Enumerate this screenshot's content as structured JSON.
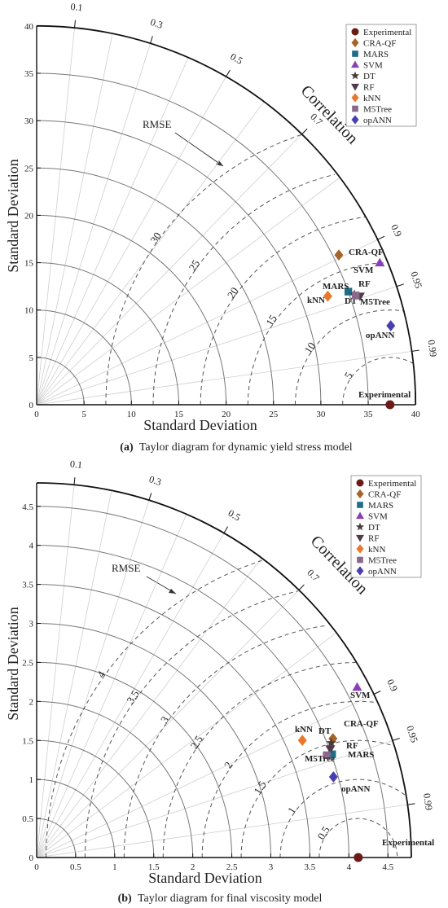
{
  "chart_data": [
    {
      "type": "taylor",
      "panel_label": "(a)",
      "caption": "Taylor diagram for dynamic yield stress model",
      "xlabel": "Standard Deviation",
      "ylabel": "Standard Deviation",
      "arc_label": "Correlation",
      "rmse_label": "RMSE",
      "sd_max": 40,
      "sd_ticks": [
        0,
        5,
        10,
        15,
        20,
        25,
        30,
        35,
        40
      ],
      "ref_arcs": [
        5,
        10,
        15,
        20,
        25,
        30,
        35
      ],
      "corr_ticks": [
        0.1,
        0.3,
        0.5,
        0.7,
        0.9,
        0.95,
        0.99
      ],
      "corr_label_list": [
        0.1,
        0.3,
        0.5,
        0.7,
        0.9,
        0.95,
        0.99
      ],
      "reference_sd": 37.3,
      "rmse_levels": [
        5,
        10,
        15,
        20,
        25,
        30
      ],
      "rmse_label_list": [
        5,
        10,
        15,
        20,
        25,
        30
      ],
      "models": [
        {
          "name": "Experimental",
          "sd": 37.3,
          "corr": 1.0,
          "label": "Experimental"
        },
        {
          "name": "CRA-QF",
          "sd": 35.6,
          "corr": 0.896,
          "label": "CRA-QF"
        },
        {
          "name": "MARS",
          "sd": 35.0,
          "corr": 0.94,
          "label": "MARS"
        },
        {
          "name": "SVM",
          "sd": 39.2,
          "corr": 0.924,
          "label": "SVM"
        },
        {
          "name": "DT",
          "sd": 35.5,
          "corr": 0.945,
          "label": "DT"
        },
        {
          "name": "RF",
          "sd": 36.0,
          "corr": 0.948,
          "label": "RF"
        },
        {
          "name": "kNN",
          "sd": 32.8,
          "corr": 0.937,
          "label": "kNN"
        },
        {
          "name": "M5Tree",
          "sd": 35.6,
          "corr": 0.946,
          "label": "M5Tree"
        },
        {
          "name": "opANN",
          "sd": 38.3,
          "corr": 0.976,
          "label": "opANN"
        }
      ]
    },
    {
      "type": "taylor",
      "panel_label": "(b)",
      "caption": "Taylor diagram for final viscosity model",
      "xlabel": "Standard Deviation",
      "ylabel": "Standard Deviation",
      "arc_label": "Correlation",
      "rmse_label": "RMSE",
      "sd_max": 4.8,
      "sd_ticks": [
        0,
        0.5,
        1,
        1.5,
        2,
        2.5,
        3,
        3.5,
        4,
        4.5
      ],
      "ref_arcs": [
        0.5,
        1,
        1.5,
        2,
        2.5,
        3,
        3.5,
        4,
        4.5
      ],
      "corr_ticks": [
        0.1,
        0.3,
        0.5,
        0.7,
        0.9,
        0.95,
        0.99
      ],
      "corr_label_list": [
        0.1,
        0.3,
        0.5,
        0.7,
        0.9,
        0.95,
        0.99
      ],
      "reference_sd": 4.12,
      "rmse_levels": [
        0.5,
        1,
        1.5,
        2,
        2.5,
        3,
        3.5,
        4
      ],
      "rmse_label_list": [
        0.5,
        1,
        1.5,
        2,
        2.5,
        3,
        3.5,
        4
      ],
      "models": [
        {
          "name": "Experimental",
          "sd": 4.12,
          "corr": 1.0,
          "label": "Experimental"
        },
        {
          "name": "CRA-QF",
          "sd": 4.09,
          "corr": 0.928,
          "label": "CRA-QF"
        },
        {
          "name": "MARS",
          "sd": 4.01,
          "corr": 0.944,
          "label": "MARS"
        },
        {
          "name": "SVM",
          "sd": 4.65,
          "corr": 0.883,
          "label": "SVM"
        },
        {
          "name": "DT",
          "sd": 4.05,
          "corr": 0.932,
          "label": "DT"
        },
        {
          "name": "RF",
          "sd": 4.01,
          "corr": 0.938,
          "label": "RF"
        },
        {
          "name": "kNN",
          "sd": 3.72,
          "corr": 0.915,
          "label": "kNN"
        },
        {
          "name": "M5Tree",
          "sd": 3.94,
          "corr": 0.943,
          "label": "M5Tree"
        },
        {
          "name": "opANN",
          "sd": 3.94,
          "corr": 0.965,
          "label": "opANN"
        }
      ]
    }
  ],
  "legend": [
    {
      "name": "Experimental",
      "symbol": "circle",
      "color": "#6b1a1a"
    },
    {
      "name": "CRA-QF",
      "symbol": "diamond",
      "color": "#a5652a"
    },
    {
      "name": "MARS",
      "symbol": "square",
      "color": "#1f6e87"
    },
    {
      "name": "SVM",
      "symbol": "triangle-up",
      "color": "#8b3fb5"
    },
    {
      "name": "DT",
      "symbol": "star",
      "color": "#4a3b3b"
    },
    {
      "name": "RF",
      "symbol": "triangle-down",
      "color": "#4f3a4a"
    },
    {
      "name": "kNN",
      "symbol": "diamond",
      "color": "#e8782a"
    },
    {
      "name": "M5Tree",
      "symbol": "square",
      "color": "#8a6a8a"
    },
    {
      "name": "opANN",
      "symbol": "diamond",
      "color": "#4a3fb0"
    }
  ]
}
